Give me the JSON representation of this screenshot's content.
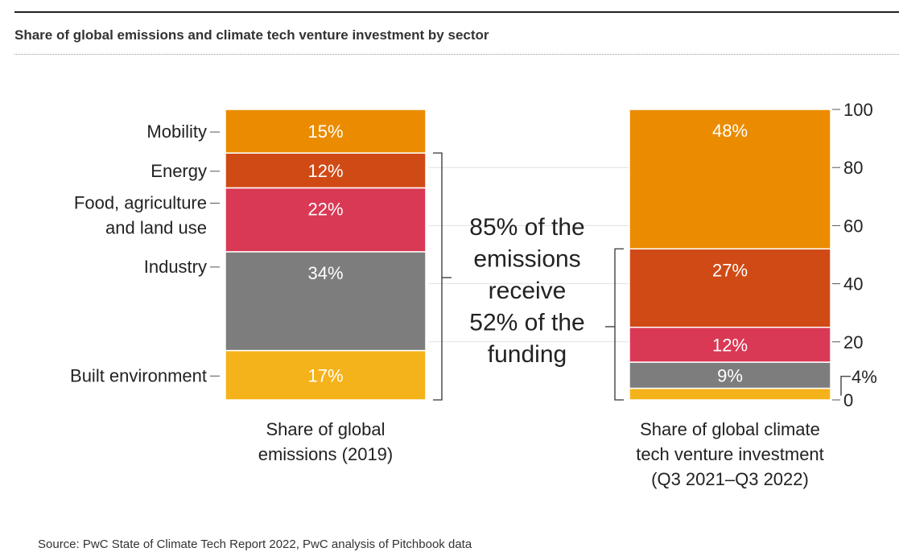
{
  "title": "Share of global emissions and climate tech venture investment by sector",
  "source": "Source: PwC State of Climate Tech Report 2022, PwC analysis of Pitchbook data",
  "annotation": [
    "85% of the",
    "emissions",
    "receive",
    "52% of the",
    "funding"
  ],
  "chart_data": {
    "type": "bar",
    "stacked": true,
    "categories": [
      "Share of global emissions (2019)",
      "Share of global climate tech venture investment (Q3 2021–Q3 2022)"
    ],
    "category_label_lines": [
      [
        "Share of global",
        "emissions (2019)"
      ],
      [
        "Share of global climate",
        "tech venture investment",
        "(Q3 2021–Q3 2022)"
      ]
    ],
    "series": [
      {
        "name": "Built environment",
        "values": [
          17,
          4
        ],
        "labels": [
          "17%",
          "4%"
        ],
        "color": "#F5B31B"
      },
      {
        "name": "Industry",
        "values": [
          34,
          9
        ],
        "labels": [
          "34%",
          "9%"
        ],
        "color": "#7D7D7D"
      },
      {
        "name": "Food, agriculture and land use",
        "values": [
          22,
          12
        ],
        "labels": [
          "22%",
          "12%"
        ],
        "color": "#D93954"
      },
      {
        "name": "Energy",
        "values": [
          12,
          27
        ],
        "labels": [
          "12%",
          "27%"
        ],
        "color": "#D04A16"
      },
      {
        "name": "Mobility",
        "values": [
          15,
          48
        ],
        "labels": [
          "15%",
          "48%"
        ],
        "color": "#EB8C00"
      }
    ],
    "series_label_lines": [
      [
        "Built environment"
      ],
      [
        "Industry"
      ],
      [
        "Food, agriculture",
        "and land use"
      ],
      [
        "Energy"
      ],
      [
        "Mobility"
      ]
    ],
    "y_ticks": [
      0,
      20,
      40,
      60,
      80,
      100
    ],
    "ylim": [
      0,
      100
    ],
    "grid": true,
    "axis_position": "right"
  }
}
